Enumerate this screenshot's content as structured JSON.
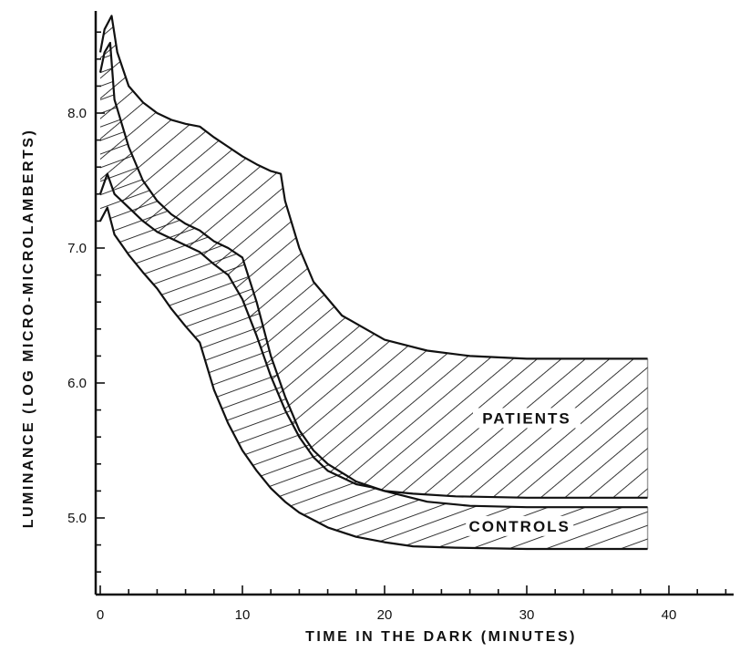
{
  "chart_data": {
    "type": "area",
    "title": "",
    "xlabel": "TIME IN THE DARK (MINUTES)",
    "ylabel": "LUMINANCE (LOG MICRO-MICROLAMBERTS)",
    "xlim": [
      0,
      44
    ],
    "ylim": [
      4.4,
      8.8
    ],
    "x_ticks": [
      0,
      10,
      20,
      30,
      40
    ],
    "x_tick_labels": [
      "0",
      "10",
      "20",
      "30",
      "40"
    ],
    "y_ticks": [
      5.0,
      6.0,
      7.0,
      8.0
    ],
    "y_tick_labels": [
      "5.0",
      "6.0",
      "7.0",
      "8.0"
    ],
    "grid": false,
    "legend": "none",
    "series": [
      {
        "name": "PATIENTS",
        "hatch": "diagonal",
        "upper": {
          "x": [
            0,
            0.3,
            0.8,
            1.2,
            2,
            3,
            4,
            5,
            6,
            7,
            8,
            9,
            10,
            11,
            12,
            12.7,
            13,
            14,
            15,
            17,
            20,
            23,
            26,
            30,
            35,
            38.5
          ],
          "y": [
            8.45,
            8.62,
            8.72,
            8.45,
            8.2,
            8.08,
            8.0,
            7.95,
            7.92,
            7.9,
            7.82,
            7.75,
            7.68,
            7.62,
            7.57,
            7.55,
            7.35,
            7.0,
            6.75,
            6.5,
            6.32,
            6.24,
            6.2,
            6.18,
            6.18,
            6.18
          ]
        },
        "lower": {
          "x": [
            0,
            0.5,
            1,
            2,
            3,
            4,
            5,
            6,
            7,
            8,
            9,
            10,
            11,
            12,
            13,
            14,
            15,
            16,
            17,
            18,
            19,
            20,
            22,
            25,
            30,
            35,
            38.5
          ],
          "y": [
            7.4,
            7.55,
            7.4,
            7.3,
            7.2,
            7.12,
            7.07,
            7.02,
            6.97,
            6.88,
            6.8,
            6.62,
            6.35,
            6.05,
            5.8,
            5.6,
            5.45,
            5.35,
            5.3,
            5.25,
            5.23,
            5.2,
            5.18,
            5.16,
            5.15,
            5.15,
            5.15
          ]
        }
      },
      {
        "name": "CONTROLS",
        "hatch": "diagonal-shallow",
        "upper": {
          "x": [
            0,
            0.3,
            0.7,
            1,
            2,
            3,
            4,
            5,
            6,
            7,
            8,
            9,
            10,
            11,
            12,
            13,
            14,
            15,
            16,
            18,
            20,
            23,
            26,
            30,
            35,
            38.5
          ],
          "y": [
            8.3,
            8.45,
            8.52,
            8.1,
            7.75,
            7.5,
            7.35,
            7.25,
            7.18,
            7.13,
            7.05,
            7.0,
            6.93,
            6.6,
            6.2,
            5.9,
            5.65,
            5.5,
            5.4,
            5.27,
            5.2,
            5.12,
            5.09,
            5.08,
            5.08,
            5.08
          ]
        },
        "lower": {
          "x": [
            0,
            0.5,
            1,
            2,
            3,
            4,
            5,
            6,
            6.5,
            7,
            8,
            9,
            10,
            11,
            12,
            13,
            14,
            16,
            18,
            20,
            22,
            25,
            30,
            35,
            38.5
          ],
          "y": [
            7.2,
            7.3,
            7.1,
            6.95,
            6.82,
            6.7,
            6.55,
            6.42,
            6.36,
            6.3,
            5.95,
            5.7,
            5.5,
            5.35,
            5.22,
            5.12,
            5.04,
            4.93,
            4.86,
            4.82,
            4.79,
            4.78,
            4.77,
            4.77,
            4.77
          ]
        }
      }
    ],
    "annotations": [
      {
        "text": "PATIENTS",
        "x": 30,
        "y": 5.72
      },
      {
        "text": "CONTROLS",
        "x": 29.5,
        "y": 4.92
      }
    ]
  }
}
